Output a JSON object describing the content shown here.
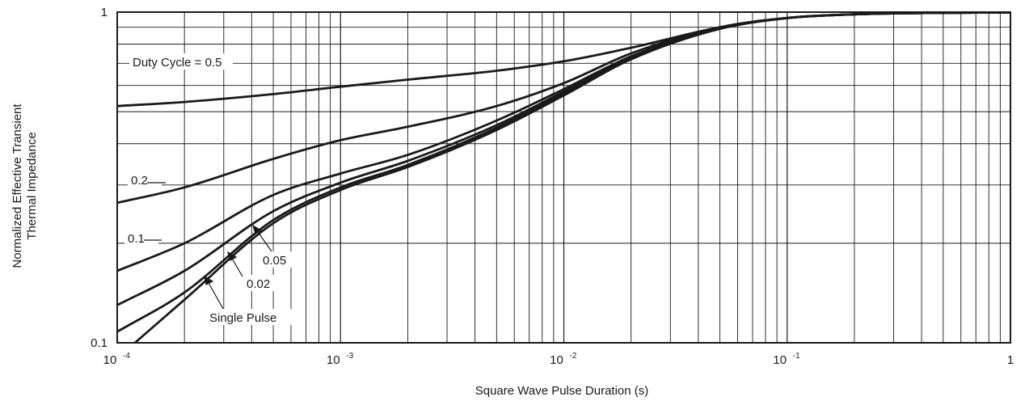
{
  "chart_data": {
    "type": "line",
    "title": "",
    "xlabel": "Square Wave Pulse Duration (s)",
    "ylabel_lines": [
      "Normalized Effective Transient",
      "Thermal Impedance"
    ],
    "x_scale": "log",
    "y_scale": "log",
    "xlim": [
      0.0001,
      1
    ],
    "ylim": [
      0.1,
      1
    ],
    "grid": true,
    "x_ticks": [
      {
        "base": "10",
        "exp": "-4"
      },
      {
        "base": "10",
        "exp": "-3"
      },
      {
        "base": "10",
        "exp": "-2"
      },
      {
        "base": "10",
        "exp": "-1"
      },
      {
        "base": "1",
        "exp": ""
      }
    ],
    "y_ticks": [
      "0.1",
      "1"
    ],
    "series": [
      {
        "name": "Duty Cycle = 0.5",
        "x": [
          0.0001,
          0.0002,
          0.0005,
          0.001,
          0.002,
          0.005,
          0.01,
          0.02,
          0.05,
          0.1,
          0.2,
          0.5,
          1
        ],
        "y": [
          0.52,
          0.535,
          0.565,
          0.595,
          0.625,
          0.665,
          0.71,
          0.78,
          0.9,
          0.96,
          0.985,
          0.995,
          0.998
        ]
      },
      {
        "name": "0.2",
        "x": [
          0.0001,
          0.0002,
          0.0005,
          0.001,
          0.002,
          0.005,
          0.01,
          0.02,
          0.05,
          0.1,
          0.2,
          0.5,
          1
        ],
        "y": [
          0.265,
          0.295,
          0.36,
          0.41,
          0.45,
          0.52,
          0.61,
          0.75,
          0.9,
          0.96,
          0.985,
          0.995,
          0.998
        ]
      },
      {
        "name": "0.1",
        "x": [
          0.0001,
          0.0002,
          0.0005,
          0.001,
          0.002,
          0.005,
          0.01,
          0.02,
          0.05,
          0.1,
          0.2,
          0.5,
          1
        ],
        "y": [
          0.165,
          0.2,
          0.28,
          0.325,
          0.37,
          0.47,
          0.585,
          0.735,
          0.895,
          0.96,
          0.985,
          0.995,
          0.998
        ]
      },
      {
        "name": "0.05",
        "x": [
          0.0001,
          0.0002,
          0.0005,
          0.001,
          0.002,
          0.005,
          0.01,
          0.02,
          0.05,
          0.1,
          0.2,
          0.5,
          1
        ],
        "y": [
          0.13,
          0.165,
          0.25,
          0.305,
          0.355,
          0.455,
          0.575,
          0.73,
          0.893,
          0.96,
          0.985,
          0.995,
          0.998
        ]
      },
      {
        "name": "0.02",
        "x": [
          0.0001,
          0.0002,
          0.0005,
          0.001,
          0.002,
          0.005,
          0.01,
          0.02,
          0.05,
          0.1,
          0.2,
          0.5,
          1
        ],
        "y": [
          0.108,
          0.142,
          0.235,
          0.295,
          0.345,
          0.447,
          0.568,
          0.725,
          0.891,
          0.96,
          0.985,
          0.995,
          0.998
        ]
      },
      {
        "name": "Single Pulse",
        "x": [
          0.00012,
          0.0002,
          0.0005,
          0.001,
          0.002,
          0.005,
          0.01,
          0.02,
          0.05,
          0.1,
          0.2,
          0.5,
          1
        ],
        "y": [
          0.1,
          0.135,
          0.23,
          0.29,
          0.34,
          0.44,
          0.56,
          0.72,
          0.89,
          0.96,
          0.985,
          0.995,
          0.998
        ]
      }
    ],
    "annotations": [
      {
        "name": "duty-label-0.5",
        "text": "Duty Cycle = 0.5"
      },
      {
        "name": "duty-label-0.2",
        "text": "0.2"
      },
      {
        "name": "duty-label-0.1",
        "text": "0.1"
      },
      {
        "name": "duty-label-0.05",
        "text": "0.05"
      },
      {
        "name": "duty-label-0.02",
        "text": "0.02"
      },
      {
        "name": "duty-label-single-pulse",
        "text": "Single Pulse"
      }
    ],
    "colors": {
      "line": "#1a1a1a",
      "grid": "#1a1a1a",
      "background": "#ffffff"
    }
  }
}
